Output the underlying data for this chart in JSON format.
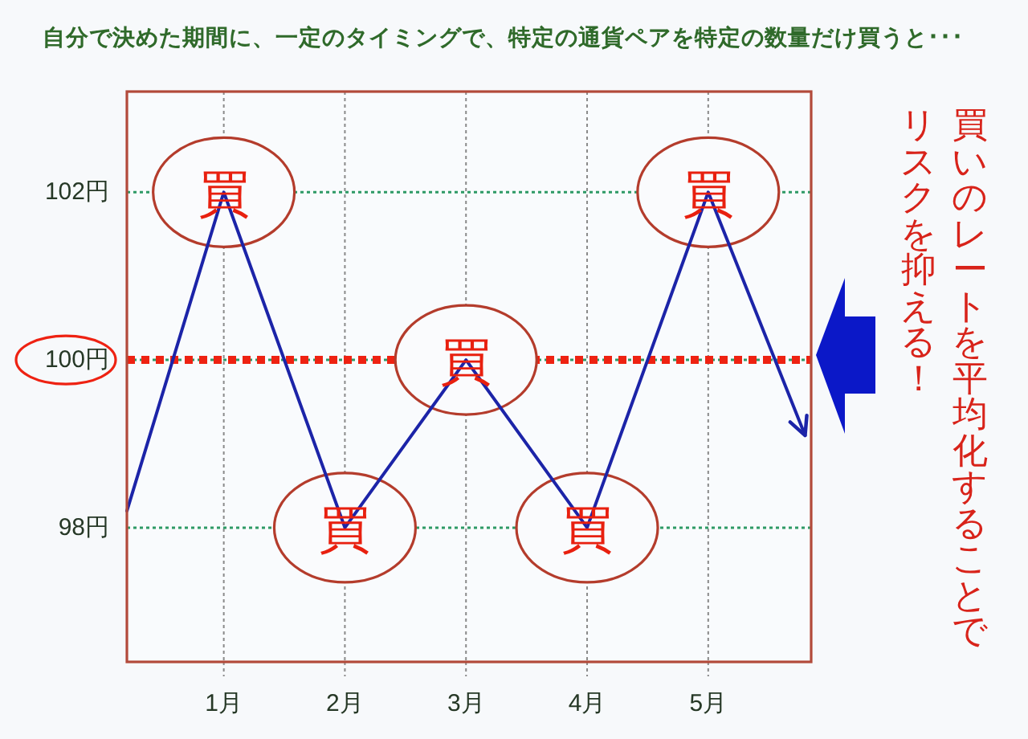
{
  "chart_data": {
    "type": "line",
    "title": "自分で決めた期間に、一定のタイミングで、特定の通貨ペアを特定の数量だけ買うと･･･",
    "x": [
      0.2,
      1,
      2,
      3,
      4,
      5,
      5.8
    ],
    "series": [
      {
        "color": "#1c24a8",
        "values": [
          98.2,
          102,
          98,
          100,
          98,
          102,
          99.1
        ]
      }
    ],
    "xlim": [
      0.2,
      5.85
    ],
    "xticks": [
      {
        "value": 1,
        "label": "1月"
      },
      {
        "value": 2,
        "label": "2月"
      },
      {
        "value": 3,
        "label": "3月"
      },
      {
        "value": 4,
        "label": "4月"
      },
      {
        "value": 5,
        "label": "5月"
      }
    ],
    "ylim": [
      96.4,
      103.2
    ],
    "yticks": [
      {
        "value": 98,
        "label": "98円"
      },
      {
        "value": 100,
        "label": "100円"
      },
      {
        "value": 102,
        "label": "102円"
      }
    ],
    "grid": true,
    "ref_lines": [
      {
        "axis": "y",
        "value": 100,
        "color": "#ee2212",
        "line_style": "dotted"
      }
    ],
    "annotations": [
      {
        "text": "買",
        "x": 1,
        "y": 102
      },
      {
        "text": "買",
        "x": 2,
        "y": 98
      },
      {
        "text": "買",
        "x": 3,
        "y": 100
      },
      {
        "text": "買",
        "x": 4,
        "y": 98
      },
      {
        "text": "買",
        "x": 5,
        "y": 102
      },
      "買いのレートを平均化することでリスクを抑える！"
    ]
  }
}
